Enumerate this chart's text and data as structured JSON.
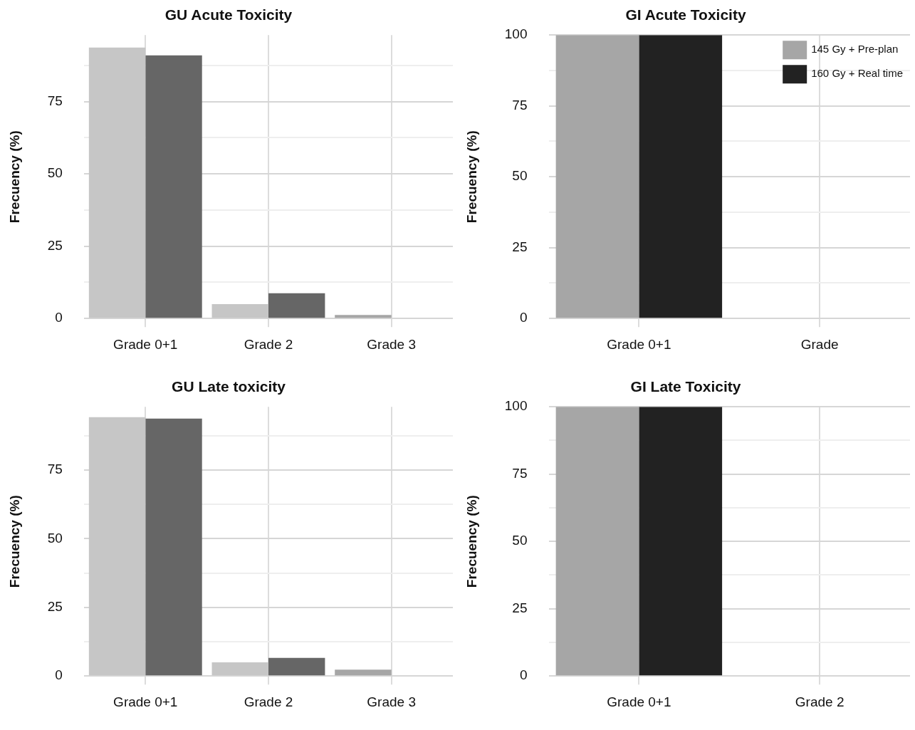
{
  "chart_data": [
    {
      "type": "bar",
      "title": "GU Acute Toxicity",
      "ylabel": "Frecuency (%)",
      "categories": [
        "Grade 0+1",
        "Grade 2",
        "Grade 3"
      ],
      "series": [
        {
          "colors": [
            "#c6c6c6",
            "#c6c6c6",
            "#a6a6a6"
          ],
          "values": [
            93.7,
            5.0,
            1.2
          ]
        },
        {
          "color": "#666666",
          "values": [
            91.0,
            8.7,
            0
          ]
        }
      ],
      "ylim": [
        0,
        98
      ],
      "yticks": [
        0,
        {
          "value": 12.5,
          "label": null
        },
        25,
        {
          "value": 37.5,
          "label": null
        },
        50,
        {
          "value": 62.5,
          "label": null
        },
        75,
        {
          "value": 87.5,
          "label": null
        }
      ],
      "grid": true
    },
    {
      "type": "bar",
      "title": "GI Acute Toxicity",
      "ylabel": "Frecuency (%)",
      "categories": [
        "Grade 0+1",
        "Grade"
      ],
      "series": [
        {
          "name": "145 Gy + Pre-plan",
          "color": "#a6a6a6",
          "values": [
            100,
            0
          ]
        },
        {
          "name": "160 Gy + Real time",
          "color": "#222222",
          "values": [
            100,
            0
          ]
        }
      ],
      "ylim": [
        0,
        100
      ],
      "yticks": [
        0,
        {
          "value": 12.5,
          "label": null
        },
        25,
        {
          "value": 37.5,
          "label": null
        },
        50,
        {
          "value": 62.5,
          "label": null
        },
        75,
        {
          "value": 87.5,
          "label": null
        },
        100
      ],
      "grid": true,
      "legend": "top right"
    },
    {
      "type": "bar",
      "title": "GU Late toxicity",
      "ylabel": "Frecuency (%)",
      "categories": [
        "Grade 0+1",
        "Grade 2",
        "Grade 3"
      ],
      "series": [
        {
          "colors": [
            "#c6c6c6",
            "#c6c6c6",
            "#a6a6a6"
          ],
          "values": [
            94.2,
            5.0,
            2.3
          ]
        },
        {
          "color": "#666666",
          "values": [
            93.7,
            6.6,
            0
          ]
        }
      ],
      "ylim": [
        0,
        98
      ],
      "yticks": [
        0,
        {
          "value": 12.5,
          "label": null
        },
        25,
        {
          "value": 37.5,
          "label": null
        },
        50,
        {
          "value": 62.5,
          "label": null
        },
        75,
        {
          "value": 87.5,
          "label": null
        }
      ],
      "grid": true
    },
    {
      "type": "bar",
      "title": "GI Late Toxicity",
      "ylabel": "Frecuency (%)",
      "categories": [
        "Grade 0+1",
        "Grade 2"
      ],
      "series": [
        {
          "color": "#a6a6a6",
          "values": [
            100,
            0
          ]
        },
        {
          "color": "#222222",
          "values": [
            100,
            0
          ]
        }
      ],
      "ylim": [
        0,
        100
      ],
      "yticks": [
        0,
        {
          "value": 12.5,
          "label": null
        },
        25,
        {
          "value": 37.5,
          "label": null
        },
        50,
        {
          "value": 62.5,
          "label": null
        },
        75,
        {
          "value": 87.5,
          "label": null
        },
        100
      ],
      "grid": true
    }
  ]
}
